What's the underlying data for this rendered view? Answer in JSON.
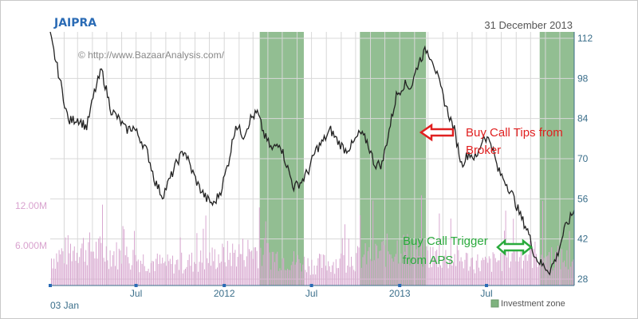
{
  "chart_data": {
    "type": "line",
    "title": "JAIPRA",
    "date": "31 December 2013",
    "watermark": "© http://www.BazaarAnalysis.com/",
    "y_ticks": [
      28,
      42,
      56,
      70,
      84,
      98,
      112
    ],
    "ylim": [
      28,
      112
    ],
    "volume_ticks": [
      "6.000M",
      "12.00M"
    ],
    "x_ticks": [
      "Jul",
      "2012",
      "Jul",
      "2013",
      "Jul"
    ],
    "start_label": "03 Jan",
    "series": [
      {
        "x": [
          "2011-01-03",
          "2011-01-20",
          "2011-02-10",
          "2011-03-01",
          "2011-03-20",
          "2011-04-05",
          "2011-04-20",
          "2011-05-10",
          "2011-05-25",
          "2011-06-10",
          "2011-06-25",
          "2011-07-10",
          "2011-07-25",
          "2011-08-10",
          "2011-08-25",
          "2011-09-10",
          "2011-09-25",
          "2011-10-10",
          "2011-10-25",
          "2011-11-10",
          "2011-11-25",
          "2011-12-10",
          "2011-12-25",
          "2012-01-10",
          "2012-01-25",
          "2012-02-10",
          "2012-02-25",
          "2012-03-10",
          "2012-03-25",
          "2012-04-10",
          "2012-04-25",
          "2012-05-10",
          "2012-05-25",
          "2012-06-10",
          "2012-06-25",
          "2012-07-10",
          "2012-07-25",
          "2012-08-10",
          "2012-08-25",
          "2012-09-10",
          "2012-09-25",
          "2012-10-10",
          "2012-10-25",
          "2012-11-10",
          "2012-11-25",
          "2012-12-10",
          "2012-12-25",
          "2013-01-10",
          "2013-01-25",
          "2013-02-10",
          "2013-02-25",
          "2013-03-10",
          "2013-03-25",
          "2013-04-10",
          "2013-04-25",
          "2013-05-10",
          "2013-05-25",
          "2013-06-10",
          "2013-06-25",
          "2013-07-10",
          "2013-07-25",
          "2013-08-10",
          "2013-08-25",
          "2013-09-10",
          "2013-09-25",
          "2013-10-10",
          "2013-10-25",
          "2013-11-10",
          "2013-11-25",
          "2013-12-10",
          "2013-12-31"
        ],
        "values": [
          113,
          100,
          83,
          84,
          81,
          93,
          101,
          87,
          84,
          80,
          81,
          77,
          72,
          62,
          57,
          63,
          69,
          73,
          66,
          60,
          56,
          54,
          59,
          69,
          82,
          78,
          84,
          86,
          78,
          73,
          76,
          68,
          60,
          62,
          66,
          73,
          76,
          80,
          76,
          73,
          75,
          79,
          76,
          68,
          68,
          80,
          92,
          96,
          95,
          104,
          108,
          105,
          96,
          87,
          80,
          68,
          72,
          70,
          78,
          76,
          66,
          62,
          57,
          50,
          45,
          36,
          33,
          31,
          36,
          45,
          52
        ]
      }
    ],
    "volume": {
      "x": [
        "2011-01-03",
        "2011-03-01",
        "2011-05-01",
        "2011-07-01",
        "2011-09-01",
        "2011-11-01",
        "2012-01-01",
        "2012-03-01",
        "2012-05-01",
        "2012-07-01",
        "2012-09-01",
        "2012-11-01",
        "2013-01-01",
        "2013-03-01",
        "2013-05-01",
        "2013-07-01",
        "2013-09-01",
        "2013-11-01",
        "2013-12-31"
      ],
      "values_m": [
        4.5,
        6.5,
        5.5,
        4.5,
        3.5,
        4.0,
        5.0,
        6.0,
        4.5,
        3.5,
        4.0,
        5.0,
        6.5,
        5.0,
        4.5,
        3.5,
        5.5,
        5.0,
        4.0
      ]
    },
    "investment_zones": [
      {
        "start": "2012-03-15",
        "end": "2012-06-15"
      },
      {
        "start": "2012-10-10",
        "end": "2013-02-25"
      },
      {
        "start": "2013-10-20",
        "end": "2013-12-31"
      }
    ],
    "legend": "Investment zone",
    "annotations": [
      {
        "text_lines": [
          "Buy Call Tips from",
          "Broker"
        ],
        "color": "#e02020",
        "arrow": "left"
      },
      {
        "text_lines": [
          "Buy Call Trigger",
          "from APS"
        ],
        "color": "#2aaa3c",
        "arrow": "double"
      }
    ],
    "colors": {
      "price": "#222222",
      "zone": "#7fb37f",
      "volume": "#d8a8d0",
      "axis_text": "#3a6e8a",
      "grid": "#d8d8d8"
    },
    "grid": true
  }
}
